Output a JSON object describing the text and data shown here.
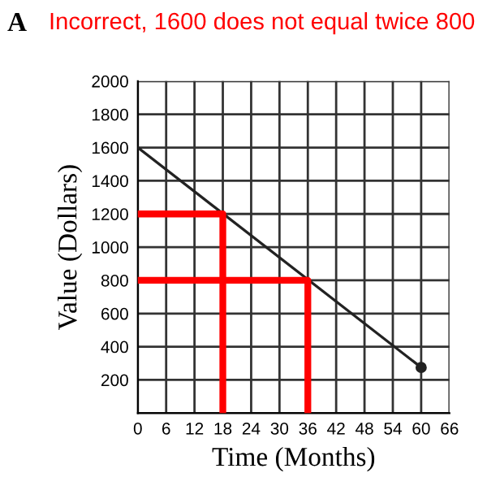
{
  "chart_data": {
    "type": "line",
    "xlabel": "Time (Months)",
    "ylabel": "Value (Dollars)",
    "annotations": [
      "A",
      "Incorrect, 1600 does not equal twice 800"
    ],
    "series": [
      {
        "x": [
          0,
          60
        ],
        "values": [
          1600,
          275
        ],
        "color": "#222222",
        "marker": "circle"
      },
      {
        "x": [
          18,
          18,
          0
        ],
        "values": [
          0,
          1200,
          1200
        ],
        "color": "#ff0000",
        "marker": "none"
      },
      {
        "x": [
          36,
          36,
          0
        ],
        "values": [
          0,
          800,
          800
        ],
        "color": "#ff0000",
        "marker": "none"
      }
    ],
    "xlim": [
      0,
      66
    ],
    "ylim": [
      0,
      2000
    ],
    "xticks": [
      0,
      6,
      12,
      18,
      24,
      30,
      36,
      42,
      48,
      54,
      60,
      66
    ],
    "yticks": [
      {
        "value": 0,
        "label": null
      },
      200,
      400,
      600,
      800,
      1000,
      1200,
      1400,
      1600,
      1800,
      2000
    ],
    "grid": true,
    "legend": false
  }
}
